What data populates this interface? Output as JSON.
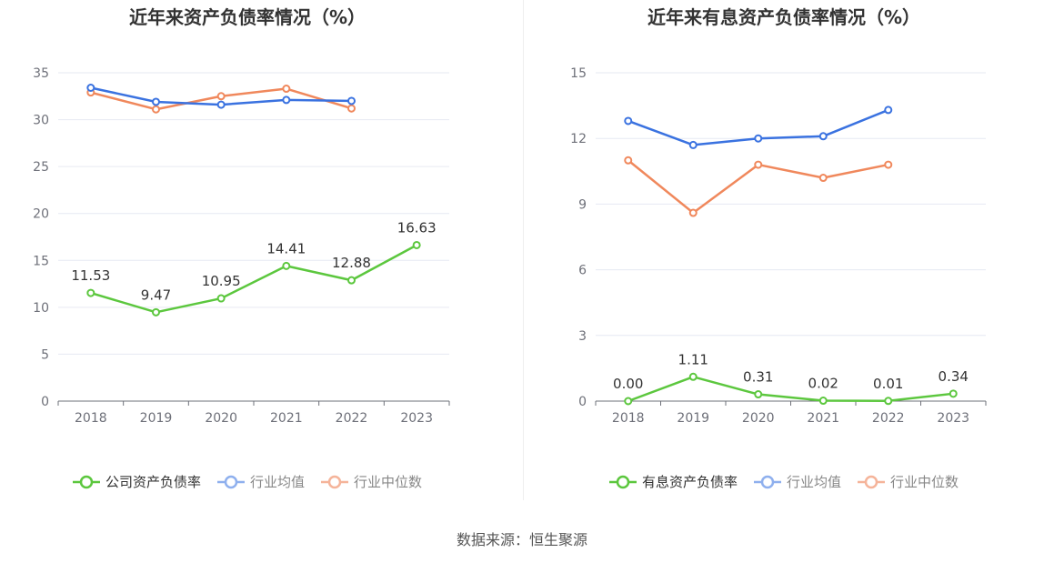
{
  "chart_data": [
    {
      "type": "line",
      "title": "近年来资产负债率情况（%）",
      "categories": [
        "2018",
        "2019",
        "2020",
        "2021",
        "2022",
        "2023"
      ],
      "ylim": [
        0,
        35
      ],
      "yticks": [
        0,
        5,
        10,
        15,
        20,
        25,
        30,
        35
      ],
      "grid": true,
      "legend_position": "bottom",
      "series": [
        {
          "name": "公司资产负债率",
          "color": "#5cc73e",
          "values": [
            11.53,
            9.47,
            10.95,
            14.41,
            12.88,
            16.63
          ],
          "labels": [
            "11.53",
            "9.47",
            "10.95",
            "14.41",
            "12.88",
            "16.63"
          ]
        },
        {
          "name": "行业均值",
          "color": "#3a72e0",
          "values": [
            33.4,
            31.9,
            31.6,
            32.1,
            32.0,
            null
          ]
        },
        {
          "name": "行业中位数",
          "color": "#f0885c",
          "values": [
            32.9,
            31.1,
            32.5,
            33.3,
            31.2,
            null
          ]
        }
      ]
    },
    {
      "type": "line",
      "title": "近年来有息资产负债率情况（%）",
      "categories": [
        "2018",
        "2019",
        "2020",
        "2021",
        "2022",
        "2023"
      ],
      "ylim": [
        0,
        15
      ],
      "yticks": [
        0,
        3,
        6,
        9,
        12,
        15
      ],
      "grid": true,
      "legend_position": "bottom",
      "series": [
        {
          "name": "有息资产负债率",
          "color": "#5cc73e",
          "values": [
            0.0,
            1.11,
            0.31,
            0.02,
            0.01,
            0.34
          ],
          "labels": [
            "0.00",
            "1.11",
            "0.31",
            "0.02",
            "0.01",
            "0.34"
          ]
        },
        {
          "name": "行业均值",
          "color": "#3a72e0",
          "values": [
            12.8,
            11.7,
            12.0,
            12.1,
            13.3,
            null
          ]
        },
        {
          "name": "行业中位数",
          "color": "#f0885c",
          "values": [
            11.0,
            8.6,
            10.8,
            10.2,
            10.8,
            null
          ]
        }
      ]
    }
  ],
  "source_text": "数据来源：恒生聚源"
}
